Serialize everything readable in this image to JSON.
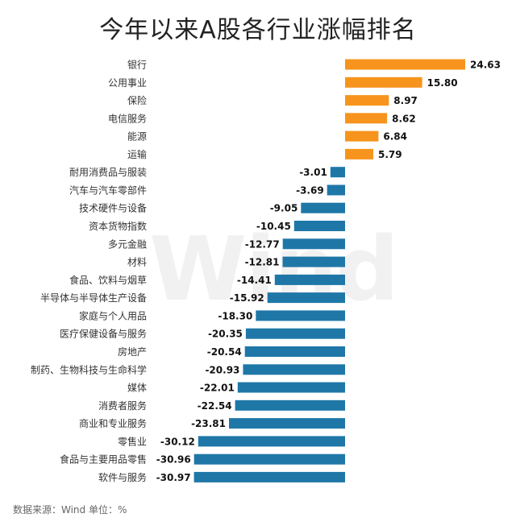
{
  "title": "今年以来A股各行业涨幅排名",
  "watermark": "Wind",
  "source": "数据来源：Wind 单位：%",
  "colors": {
    "positive": "#f7941d",
    "negative": "#1f77a8"
  },
  "chart_data": {
    "type": "bar",
    "orientation": "horizontal",
    "title": "今年以来A股各行业涨幅排名",
    "unit": "%",
    "categories": [
      "银行",
      "公用事业",
      "保险",
      "电信服务",
      "能源",
      "运输",
      "耐用消费品与服装",
      "汽车与汽车零部件",
      "技术硬件与设备",
      "资本货物指数",
      "多元金融",
      "材料",
      "食品、饮料与烟草",
      "半导体与半导体生产设备",
      "家庭与个人用品",
      "医疗保健设备与服务",
      "房地产",
      "制药、生物科技与生命科学",
      "媒体",
      "消费者服务",
      "商业和专业服务",
      "零售业",
      "食品与主要用品零售",
      "软件与服务"
    ],
    "values": [
      24.63,
      15.8,
      8.97,
      8.62,
      6.84,
      5.79,
      -3.01,
      -3.69,
      -9.05,
      -10.45,
      -12.77,
      -12.81,
      -14.41,
      -15.92,
      -18.3,
      -20.35,
      -20.54,
      -20.93,
      -22.01,
      -22.54,
      -23.81,
      -30.12,
      -30.96,
      -30.97
    ],
    "labels": [
      "24.63",
      "15.80",
      "8.97",
      "8.62",
      "6.84",
      "5.79",
      "-3.01",
      "-3.69",
      "-9.05",
      "-10.45",
      "-12.77",
      "-12.81",
      "-14.41",
      "-15.92",
      "-18.30",
      "-20.35",
      "-20.54",
      "-20.93",
      "-22.01",
      "-22.54",
      "-23.81",
      "-30.12",
      "-30.96",
      "-30.97"
    ],
    "xlim": [
      -31,
      25
    ]
  }
}
